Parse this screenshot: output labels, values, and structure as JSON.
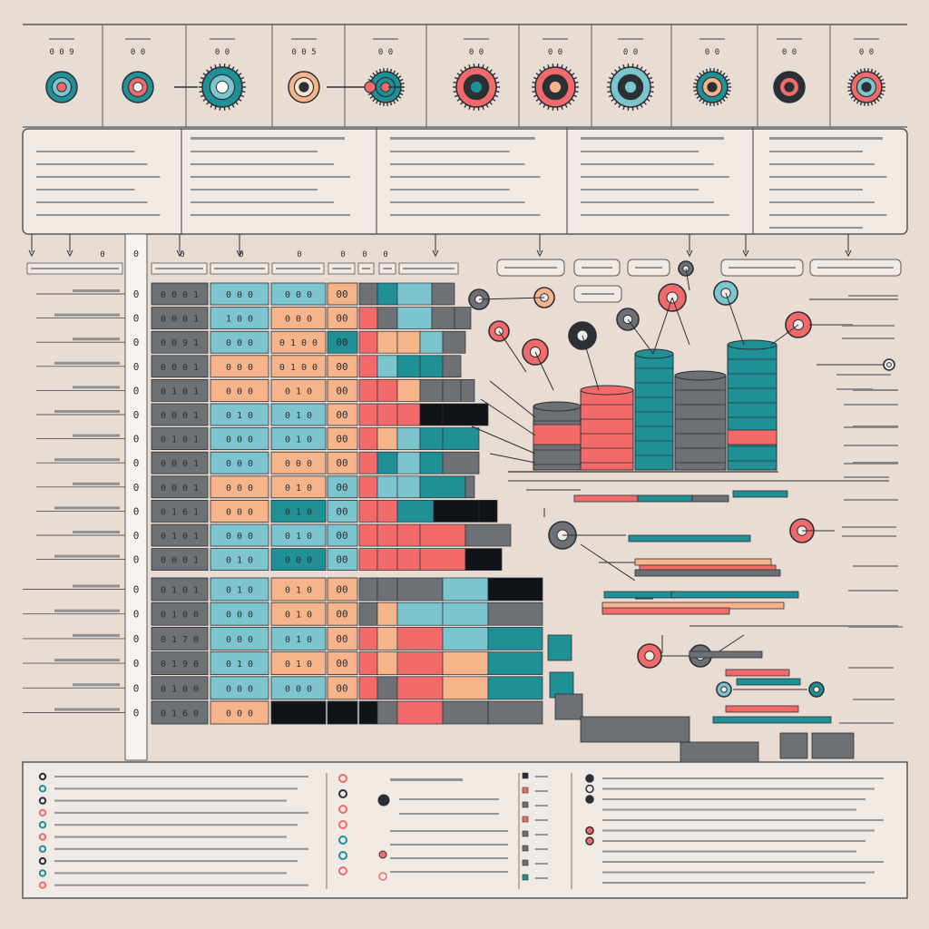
{
  "colors": {
    "background": "#e8dcd3",
    "panel": "#f1e9e3",
    "ink": "#2b2f36",
    "slate": "#6d7074",
    "teal": "#1f9096",
    "light_teal": "#7cc5cf",
    "peach": "#f6b48a",
    "coral": "#f36a6a",
    "black": "#101418"
  },
  "top_row": {
    "items": [
      {
        "label": "0 0 9",
        "icon": "node-target-icon"
      },
      {
        "label": "0 0",
        "icon": "node-target-icon"
      },
      {
        "label": "0 0",
        "icon": "node-gear-icon"
      },
      {
        "label": "0 0 5",
        "icon": "node-ring-icon"
      },
      {
        "label": "0 0",
        "icon": "node-half-gear-icon"
      },
      {
        "label": "0 0",
        "icon": "node-gear-icon"
      },
      {
        "label": "0 0",
        "icon": "node-gear-icon"
      },
      {
        "label": "0 0",
        "icon": "node-gear-icon"
      },
      {
        "label": "0 0",
        "icon": "node-gear-icon"
      },
      {
        "label": "0 0",
        "icon": "node-dot-icon"
      },
      {
        "label": "0 0",
        "icon": "node-gear-icon"
      }
    ]
  },
  "table": {
    "index_values": [
      "0",
      "0",
      "0",
      "0",
      "0",
      "0",
      "0",
      "0",
      "0",
      "0",
      "0",
      "0",
      "0",
      "0",
      "0",
      "0",
      "0",
      "0"
    ],
    "col_a": [
      "0 0 0 1",
      "0 0 0 1",
      "0 0 9 1",
      "0 0 0 1",
      "0 1 0 1",
      "0 0 0 1",
      "0 1 0 1",
      "0 0 0 1",
      "0 0 0 1",
      "0 1 6 1",
      "0 1 0 1",
      "0 0 0 1",
      "0 1 0 1",
      "0 1 0 0",
      "0 1 7 0",
      "0 1 9 0",
      "0 1 0 0",
      "0 1 6 0"
    ],
    "col_b": [
      "0 0 0",
      "1 0 0",
      "0 0 0",
      "0 0 0",
      "0 0 0",
      "0 1 0",
      "0 0 0",
      "0 0 0",
      "0 0 0",
      "0 0 0",
      "0 0 0",
      "0 1 0",
      "0 1 0",
      "0 0 0",
      "0 0 0",
      "0 1 0",
      "0 0 0",
      "0 0 0"
    ],
    "col_c": [
      "0 0 0",
      "0 0 0",
      "0 1 0 0",
      "0 1 0 0",
      "0 1 0",
      "0 1 0",
      "0 1 0",
      "0 0 0",
      "0 1 0",
      "0 1 0",
      "0 1 0",
      "0 0 0",
      "0 1 0",
      "0 1 0",
      "0 1 0",
      "0 1 0",
      "0 0 0",
      "0 0 0"
    ],
    "col_d": [
      "00",
      "00",
      "00",
      "00",
      "00",
      "00",
      "00",
      "00",
      "00",
      "00",
      "00",
      "00",
      "00",
      "00",
      "00",
      "00",
      "00",
      "00"
    ]
  },
  "footer": {
    "left_count": 10,
    "mid_count": 7,
    "right_count": 11
  }
}
